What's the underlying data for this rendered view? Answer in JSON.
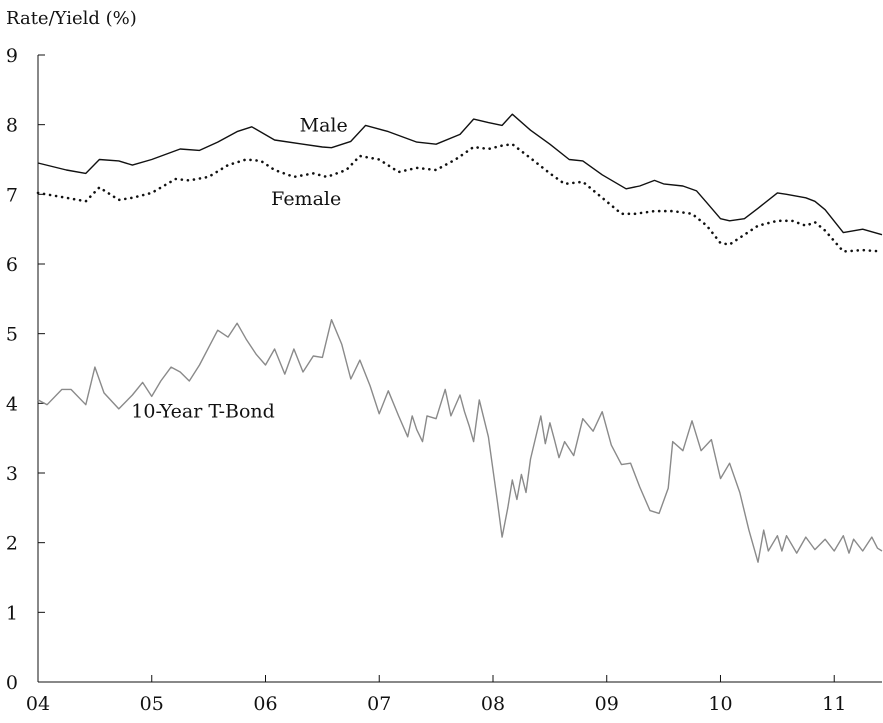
{
  "chart_data": {
    "type": "line",
    "ylabel": "Rate/Yield (%)",
    "xlabel": "",
    "ylim": [
      0,
      9
    ],
    "xlim": [
      2004.0,
      2011.42
    ],
    "x_unit": "year",
    "y_ticks": [
      "0",
      "1",
      "2",
      "3",
      "4",
      "5",
      "6",
      "7",
      "8",
      "9"
    ],
    "x_ticks": [
      {
        "value": 2004,
        "label": "04"
      },
      {
        "value": 2005,
        "label": "05"
      },
      {
        "value": 2006,
        "label": "06"
      },
      {
        "value": 2007,
        "label": "07"
      },
      {
        "value": 2008,
        "label": "08"
      },
      {
        "value": 2009,
        "label": "09"
      },
      {
        "value": 2010,
        "label": "10"
      },
      {
        "value": 2011,
        "label": "11"
      }
    ],
    "grid": false,
    "legend": "none",
    "series": [
      {
        "name": "Male",
        "color": "#111111",
        "style": "solid",
        "x": [
          2004.0,
          2004.25,
          2004.42,
          2004.54,
          2004.71,
          2004.83,
          2005.0,
          2005.25,
          2005.42,
          2005.58,
          2005.75,
          2005.88,
          2006.08,
          2006.33,
          2006.5,
          2006.58,
          2006.75,
          2006.88,
          2007.08,
          2007.33,
          2007.5,
          2007.71,
          2007.83,
          2007.96,
          2008.08,
          2008.17,
          2008.33,
          2008.5,
          2008.67,
          2008.79,
          2008.96,
          2009.17,
          2009.29,
          2009.42,
          2009.5,
          2009.67,
          2009.79,
          2009.88,
          2010.0,
          2010.08,
          2010.21,
          2010.33,
          2010.5,
          2010.58,
          2010.75,
          2010.83,
          2010.92,
          2011.08,
          2011.25,
          2011.42
        ],
        "values": [
          7.45,
          7.35,
          7.3,
          7.5,
          7.48,
          7.42,
          7.5,
          7.65,
          7.63,
          7.75,
          7.9,
          7.97,
          7.78,
          7.72,
          7.68,
          7.67,
          7.76,
          7.99,
          7.9,
          7.75,
          7.72,
          7.86,
          8.08,
          8.03,
          7.99,
          8.15,
          7.92,
          7.72,
          7.5,
          7.48,
          7.28,
          7.08,
          7.12,
          7.2,
          7.15,
          7.12,
          7.05,
          6.88,
          6.65,
          6.62,
          6.65,
          6.8,
          7.02,
          7.0,
          6.95,
          6.9,
          6.78,
          6.45,
          6.5,
          6.42
        ]
      },
      {
        "name": "Female",
        "color": "#111111",
        "style": "dotted",
        "x": [
          2004.0,
          2004.25,
          2004.42,
          2004.54,
          2004.71,
          2004.83,
          2005.0,
          2005.21,
          2005.33,
          2005.5,
          2005.67,
          2005.83,
          2005.96,
          2006.08,
          2006.25,
          2006.42,
          2006.54,
          2006.71,
          2006.83,
          2007.0,
          2007.17,
          2007.33,
          2007.5,
          2007.67,
          2007.83,
          2007.96,
          2008.08,
          2008.17,
          2008.33,
          2008.5,
          2008.63,
          2008.79,
          2008.96,
          2009.13,
          2009.25,
          2009.42,
          2009.58,
          2009.75,
          2009.88,
          2010.0,
          2010.08,
          2010.21,
          2010.33,
          2010.5,
          2010.63,
          2010.75,
          2010.83,
          2010.92,
          2011.08,
          2011.25,
          2011.42
        ],
        "values": [
          7.02,
          6.95,
          6.9,
          7.1,
          6.92,
          6.95,
          7.02,
          7.22,
          7.2,
          7.25,
          7.42,
          7.5,
          7.48,
          7.35,
          7.25,
          7.3,
          7.25,
          7.35,
          7.55,
          7.5,
          7.32,
          7.38,
          7.35,
          7.5,
          7.68,
          7.65,
          7.7,
          7.72,
          7.52,
          7.3,
          7.15,
          7.18,
          6.95,
          6.72,
          6.72,
          6.76,
          6.76,
          6.72,
          6.55,
          6.3,
          6.28,
          6.42,
          6.55,
          6.62,
          6.62,
          6.55,
          6.6,
          6.48,
          6.18,
          6.2,
          6.18
        ]
      },
      {
        "name": "10-Year T-Bond",
        "color": "#8a8a8a",
        "style": "solid",
        "x": [
          2004.0,
          2004.08,
          2004.21,
          2004.29,
          2004.42,
          2004.5,
          2004.58,
          2004.71,
          2004.83,
          2004.92,
          2005.0,
          2005.08,
          2005.17,
          2005.25,
          2005.33,
          2005.42,
          2005.5,
          2005.58,
          2005.67,
          2005.75,
          2005.83,
          2005.92,
          2006.0,
          2006.08,
          2006.17,
          2006.25,
          2006.33,
          2006.42,
          2006.5,
          2006.58,
          2006.67,
          2006.75,
          2006.83,
          2006.92,
          2007.0,
          2007.08,
          2007.17,
          2007.25,
          2007.29,
          2007.33,
          2007.38,
          2007.42,
          2007.5,
          2007.58,
          2007.63,
          2007.71,
          2007.75,
          2007.79,
          2007.83,
          2007.88,
          2007.96,
          2008.04,
          2008.08,
          2008.13,
          2008.17,
          2008.21,
          2008.25,
          2008.29,
          2008.33,
          2008.42,
          2008.46,
          2008.5,
          2008.54,
          2008.58,
          2008.63,
          2008.71,
          2008.79,
          2008.88,
          2008.96,
          2009.04,
          2009.13,
          2009.21,
          2009.29,
          2009.38,
          2009.46,
          2009.54,
          2009.58,
          2009.67,
          2009.75,
          2009.83,
          2009.92,
          2010.0,
          2010.08,
          2010.17,
          2010.25,
          2010.33,
          2010.38,
          2010.42,
          2010.5,
          2010.54,
          2010.58,
          2010.67,
          2010.75,
          2010.83,
          2010.92,
          2011.0,
          2011.08,
          2011.13,
          2011.17,
          2011.25,
          2011.33,
          2011.38,
          2011.42
        ],
        "values": [
          4.05,
          3.98,
          4.2,
          4.2,
          3.98,
          4.52,
          4.15,
          3.92,
          4.12,
          4.3,
          4.1,
          4.32,
          4.52,
          4.45,
          4.32,
          4.55,
          4.8,
          5.05,
          4.95,
          5.15,
          4.92,
          4.7,
          4.55,
          4.78,
          4.42,
          4.78,
          4.45,
          4.68,
          4.66,
          5.2,
          4.85,
          4.35,
          4.62,
          4.25,
          3.85,
          4.18,
          3.82,
          3.52,
          3.82,
          3.62,
          3.45,
          3.82,
          3.78,
          4.2,
          3.82,
          4.12,
          3.88,
          3.68,
          3.45,
          4.05,
          3.52,
          2.58,
          2.08,
          2.5,
          2.9,
          2.62,
          2.98,
          2.72,
          3.2,
          3.82,
          3.42,
          3.72,
          3.48,
          3.22,
          3.45,
          3.25,
          3.78,
          3.6,
          3.88,
          3.4,
          3.12,
          3.14,
          2.8,
          2.46,
          2.42,
          2.78,
          3.45,
          3.32,
          3.75,
          3.32,
          3.48,
          2.92,
          3.14,
          2.72,
          2.18,
          1.72,
          2.18,
          1.88,
          2.1,
          1.88,
          2.1,
          1.85,
          2.08,
          1.9,
          2.05,
          1.88,
          2.1,
          1.85,
          2.05,
          1.88,
          2.08,
          1.92,
          1.88
        ]
      }
    ],
    "annotations": [
      {
        "text": "Male",
        "x": 2006.3,
        "y": 8.0
      },
      {
        "text": "Female",
        "x": 2006.05,
        "y": 6.95
      },
      {
        "text": "10-Year T-Bond",
        "x": 2004.82,
        "y": 3.9
      }
    ]
  }
}
